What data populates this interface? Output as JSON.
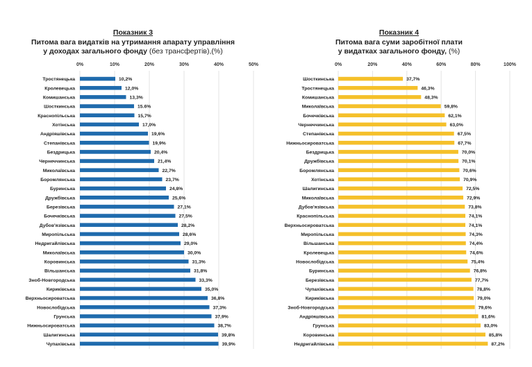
{
  "chart_data": [
    {
      "type": "bar",
      "orientation": "horizontal",
      "title_line1": "Показник 3",
      "title_line2": "Питома вага видатків на утримання апарату управління",
      "title_line3_bold": "у доходах загального фонду",
      "title_line3_normal": " (без трансфертів),(%)",
      "xlim": [
        0,
        50
      ],
      "xticks": [
        "0%",
        "10%",
        "20%",
        "30%",
        "40%",
        "50%"
      ],
      "grid": true,
      "color": "#1f6bad",
      "categories": [
        "Тростянецька",
        "Кролевецька",
        "Комишанська",
        "Шосткинська",
        "Краснопільська",
        "Хотінська",
        "Андріяшівська",
        "Степанівська",
        "Бездрицька",
        "Чернеччинська",
        "Миколаївська",
        "Боромлянська",
        "Буринська",
        "Дружбівська",
        "Березівська",
        "Бочечківська",
        "Дубов'язівська",
        "Миропільська",
        "Недригайлівська",
        "Миколаївська",
        "Коровинська",
        "Вільшанська",
        "Зноб-Новгородська",
        "Кириківська",
        "Верхньосироватська",
        "Новослобідська",
        "Грунська",
        "Нижньосироватська",
        "Шалигинська",
        "Чупахівська"
      ],
      "values": [
        10.2,
        12.0,
        13.3,
        15.6,
        15.7,
        17.0,
        19.6,
        19.9,
        20.4,
        21.4,
        22.7,
        23.7,
        24.8,
        25.6,
        27.1,
        27.5,
        28.2,
        28.6,
        29.0,
        30.0,
        31.3,
        31.8,
        33.3,
        35.0,
        36.8,
        37.3,
        37.9,
        38.7,
        39.8,
        39.9
      ],
      "labels": [
        "10,2%",
        "12,0%",
        "13,3%",
        "15.6%",
        "15,7%",
        "17,0%",
        "19,6%",
        "19,9%",
        "20,4%",
        "21,4%",
        "22,7%",
        "23,7%",
        "24,8%",
        "25,6%",
        "27,1%",
        "27,5%",
        "28,2%",
        "28,6%",
        "29,0%",
        "30,0%",
        "31,3%",
        "31,8%",
        "33,3%",
        "35,0%",
        "36,8%",
        "37,3%",
        "37,9%",
        "38,7%",
        "39,8%",
        "39,9%"
      ]
    },
    {
      "type": "bar",
      "orientation": "horizontal",
      "title_line1": "Показник 4",
      "title_line2": "Питома вага суми заробітної плати",
      "title_line3_bold": "у видатках загального фонду,",
      "title_line3_normal": " (%)",
      "xlim": [
        0,
        100
      ],
      "xticks": [
        "0%",
        "20%",
        "40%",
        "60%",
        "80%",
        "100%"
      ],
      "grid": true,
      "color": "#f5c02a",
      "categories": [
        "Шосткинська",
        "Тростянецька",
        "Комишанська",
        "Миколаївська",
        "Бочечківська",
        "Чернеччинська",
        "Степанівська",
        "Нижньосироватська",
        "Бездрицька",
        "Дружбівська",
        "Боромлянська",
        "Хотінська",
        "Шалигинська",
        "Миколаївська",
        "Дубов'язівська",
        "Краснопільська",
        "Верхньосироватська",
        "Миропільська",
        "Вільшанська",
        "Кролевецька",
        "Новослобідська",
        "Буринська",
        "Березівська",
        "Чупахівська",
        "Кириківська",
        "Зноб-Новгородська",
        "Андріяшівська",
        "Грунська",
        "Коровинська",
        "Недригайлівська"
      ],
      "values": [
        37.7,
        46.3,
        48.3,
        59.8,
        62.1,
        63.0,
        67.5,
        67.7,
        70.0,
        70.1,
        70.6,
        70.9,
        72.5,
        72.9,
        73.8,
        74.1,
        74.1,
        74.3,
        74.4,
        74.6,
        75.4,
        76.8,
        77.7,
        78.8,
        79.0,
        79.6,
        81.6,
        83.0,
        85.8,
        87.2
      ],
      "labels": [
        "37,7%",
        "46,3%",
        "48,3%",
        "59,8%",
        "62,1%",
        "63,0%",
        "67,5%",
        "67,7%",
        "70,0%",
        "70,1%",
        "70,6%",
        "70,9%",
        "72,5%",
        "72,9%",
        "73,8%",
        "74,1%",
        "74,1%",
        "74,3%",
        "74,4%",
        "74,6%",
        "75,4%",
        "76,8%",
        "77,7%",
        "78,8%",
        "79,0%",
        "79,6%",
        "81,6%",
        "83,0%",
        "85,8%",
        "87,2%"
      ]
    }
  ]
}
